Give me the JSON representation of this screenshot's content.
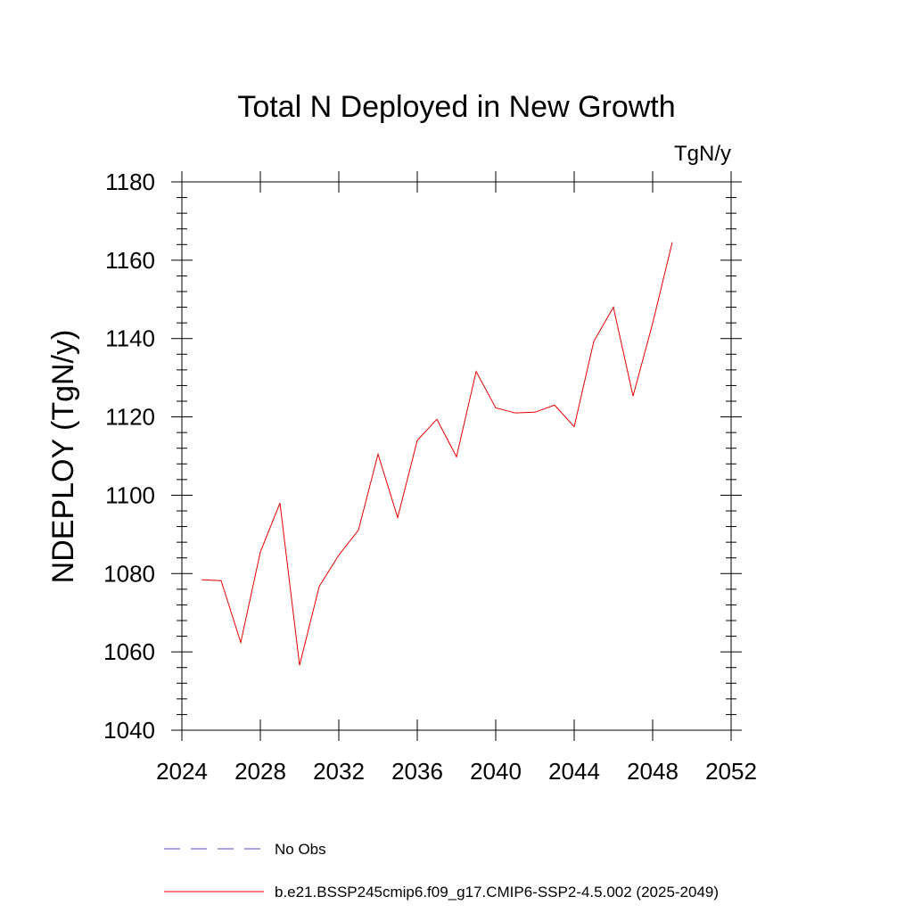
{
  "chart_data": {
    "type": "line",
    "title": "Total N Deployed in New Growth",
    "units": "TgN/y",
    "ylabel": "NDEPLOY  (TgN/y)",
    "xlabel": "",
    "xlim": [
      2024,
      2052
    ],
    "ylim": [
      1040,
      1180
    ],
    "xticks": [
      "2024",
      "2028",
      "2032",
      "2036",
      "2040",
      "2044",
      "2048",
      "2052"
    ],
    "yticks": [
      "1040",
      "1060",
      "1080",
      "1100",
      "1120",
      "1140",
      "1160",
      "1180"
    ],
    "grid": false,
    "legend_position": "bottom",
    "series": [
      {
        "name": "b.e21.BSSP245cmip6.f09_g17.CMIP6-SSP2-4.5.002 (2025-2049)",
        "color": "#e60000",
        "style": "solid",
        "x": [
          2025,
          2026,
          2027,
          2028,
          2029,
          2030,
          2031,
          2032,
          2033,
          2034,
          2035,
          2036,
          2037,
          2038,
          2039,
          2040,
          2041,
          2042,
          2043,
          2044,
          2045,
          2046,
          2047,
          2048,
          2049
        ],
        "y": [
          1078.4,
          1078.2,
          1062.4,
          1085.5,
          1098.0,
          1056.6,
          1076.7,
          1084.7,
          1091.1,
          1110.5,
          1094.3,
          1114.0,
          1119.4,
          1109.8,
          1131.6,
          1122.3,
          1121.0,
          1121.2,
          1123.0,
          1117.5,
          1139.3,
          1148.0,
          1125.3,
          1143.9,
          1164.6
        ]
      },
      {
        "name": "No Obs",
        "color": "#5a4ac4",
        "style": "dashed",
        "x": [],
        "y": []
      }
    ]
  }
}
